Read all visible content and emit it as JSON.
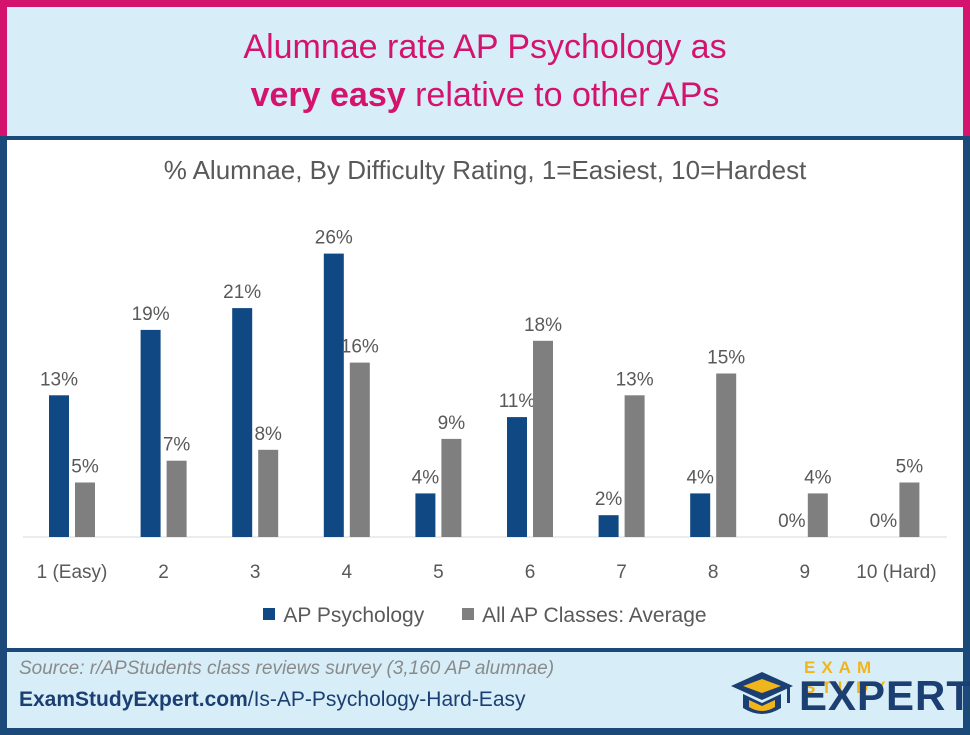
{
  "header": {
    "line1": "Alumnae rate AP Psychology as",
    "line2_bold": "very easy",
    "line2_rest": " relative to other APs"
  },
  "colors": {
    "accent": "#d4136e",
    "navy": "#1b4a7a",
    "series1": "#0f4882",
    "series2": "#7f7f7f",
    "gold": "#f1b51c"
  },
  "chart_data": {
    "type": "bar",
    "title": "% Alumnae, By Difficulty Rating, 1=Easiest, 10=Hardest",
    "categories": [
      "1 (Easy)",
      "2",
      "3",
      "4",
      "5",
      "6",
      "7",
      "8",
      "9",
      "10 (Hard)"
    ],
    "series": [
      {
        "name": "AP Psychology",
        "values": [
          13,
          19,
          21,
          26,
          4,
          11,
          2,
          4,
          0,
          0
        ],
        "labels": [
          "13%",
          "19%",
          "21%",
          "26%",
          "4%",
          "11%",
          "2%",
          "4%",
          "0%",
          "0%"
        ]
      },
      {
        "name": "All AP Classes: Average",
        "values": [
          5,
          7,
          8,
          16,
          9,
          18,
          13,
          15,
          4,
          5
        ],
        "labels": [
          "5%",
          "7%",
          "8%",
          "16%",
          "9%",
          "18%",
          "13%",
          "15%",
          "4%",
          "5%"
        ]
      }
    ],
    "legend": "bottom",
    "grid": false
  },
  "footer": {
    "source": "Source: r/APStudents class reviews survey (3,160 AP alumnae)",
    "url_bold": "ExamStudyExpert.com",
    "url_rest": "/Is-AP-Psychology-Hard-Easy"
  },
  "logo": {
    "top": "EXAM STUDY",
    "main": "EXPERT",
    "icon": "graduation-cap-icon"
  }
}
